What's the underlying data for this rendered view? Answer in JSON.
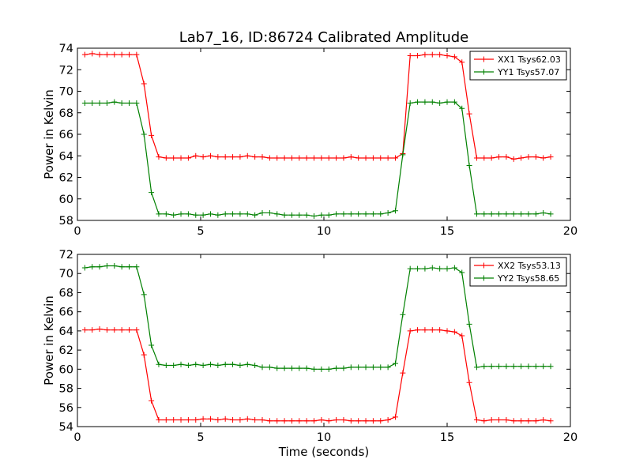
{
  "figure": {
    "title": "Lab7_16, ID:86724 Calibrated Amplitude",
    "xlabel": "Time (seconds)"
  },
  "chart_data": [
    {
      "type": "line",
      "title": "Lab7_16, ID:86724 Calibrated Amplitude",
      "xlabel": "",
      "ylabel": "Power in Kelvin",
      "xlim": [
        0,
        20
      ],
      "ylim": [
        58,
        74
      ],
      "xticks": [
        0,
        5,
        10,
        15,
        20
      ],
      "yticks": [
        58,
        60,
        62,
        64,
        66,
        68,
        70,
        72,
        74
      ],
      "grid": false,
      "legend": "top-right",
      "x": [
        0.3,
        0.6,
        0.9,
        1.2,
        1.5,
        1.8,
        2.1,
        2.4,
        2.7,
        3.0,
        3.3,
        3.6,
        3.9,
        4.2,
        4.5,
        4.8,
        5.1,
        5.4,
        5.7,
        6.0,
        6.3,
        6.6,
        6.9,
        7.2,
        7.5,
        7.8,
        8.1,
        8.4,
        8.7,
        9.0,
        9.3,
        9.6,
        9.9,
        10.2,
        10.5,
        10.8,
        11.1,
        11.4,
        11.7,
        12.0,
        12.3,
        12.6,
        12.9,
        13.2,
        13.5,
        13.8,
        14.1,
        14.4,
        14.7,
        15.0,
        15.3,
        15.6,
        15.9,
        16.2,
        16.5,
        16.8,
        17.1,
        17.4,
        17.7,
        18.0,
        18.3,
        18.6,
        18.9,
        19.2
      ],
      "series": [
        {
          "name": "XX1 Tsys62.03",
          "color": "#ff0000",
          "values": [
            73.4,
            73.5,
            73.4,
            73.4,
            73.4,
            73.4,
            73.4,
            73.4,
            70.7,
            65.9,
            63.9,
            63.8,
            63.8,
            63.8,
            63.8,
            64.0,
            63.9,
            64.0,
            63.9,
            63.9,
            63.9,
            63.9,
            64.0,
            63.9,
            63.9,
            63.8,
            63.8,
            63.8,
            63.8,
            63.8,
            63.8,
            63.8,
            63.8,
            63.8,
            63.8,
            63.8,
            63.9,
            63.8,
            63.8,
            63.8,
            63.8,
            63.8,
            63.8,
            64.2,
            73.3,
            73.3,
            73.4,
            73.4,
            73.4,
            73.3,
            73.2,
            72.7,
            67.9,
            63.8,
            63.8,
            63.8,
            63.9,
            63.9,
            63.7,
            63.8,
            63.9,
            63.9,
            63.8,
            63.9
          ]
        },
        {
          "name": "YY1 Tsys57.07",
          "color": "#008000",
          "values": [
            68.9,
            68.9,
            68.9,
            68.9,
            69.0,
            68.9,
            68.9,
            68.9,
            66.0,
            60.6,
            58.6,
            58.6,
            58.5,
            58.6,
            58.6,
            58.5,
            58.5,
            58.6,
            58.5,
            58.6,
            58.6,
            58.6,
            58.6,
            58.5,
            58.7,
            58.7,
            58.6,
            58.5,
            58.5,
            58.5,
            58.5,
            58.4,
            58.5,
            58.5,
            58.6,
            58.6,
            58.6,
            58.6,
            58.6,
            58.6,
            58.6,
            58.7,
            58.9,
            64.1,
            68.9,
            69.0,
            69.0,
            69.0,
            68.9,
            69.0,
            69.0,
            68.4,
            63.1,
            58.6,
            58.6,
            58.6,
            58.6,
            58.6,
            58.6,
            58.6,
            58.6,
            58.6,
            58.7,
            58.6
          ]
        }
      ]
    },
    {
      "type": "line",
      "title": "",
      "xlabel": "Time (seconds)",
      "ylabel": "Power in Kelvin",
      "xlim": [
        0,
        20
      ],
      "ylim": [
        54,
        72
      ],
      "xticks": [
        0,
        5,
        10,
        15,
        20
      ],
      "yticks": [
        54,
        56,
        58,
        60,
        62,
        64,
        66,
        68,
        70,
        72
      ],
      "grid": false,
      "legend": "top-right",
      "x": [
        0.3,
        0.6,
        0.9,
        1.2,
        1.5,
        1.8,
        2.1,
        2.4,
        2.7,
        3.0,
        3.3,
        3.6,
        3.9,
        4.2,
        4.5,
        4.8,
        5.1,
        5.4,
        5.7,
        6.0,
        6.3,
        6.6,
        6.9,
        7.2,
        7.5,
        7.8,
        8.1,
        8.4,
        8.7,
        9.0,
        9.3,
        9.6,
        9.9,
        10.2,
        10.5,
        10.8,
        11.1,
        11.4,
        11.7,
        12.0,
        12.3,
        12.6,
        12.9,
        13.2,
        13.5,
        13.8,
        14.1,
        14.4,
        14.7,
        15.0,
        15.3,
        15.6,
        15.9,
        16.2,
        16.5,
        16.8,
        17.1,
        17.4,
        17.7,
        18.0,
        18.3,
        18.6,
        18.9,
        19.2
      ],
      "series": [
        {
          "name": "XX2 Tsys53.13",
          "color": "#ff0000",
          "values": [
            64.1,
            64.1,
            64.2,
            64.1,
            64.1,
            64.1,
            64.1,
            64.1,
            61.5,
            56.7,
            54.7,
            54.7,
            54.7,
            54.7,
            54.7,
            54.7,
            54.8,
            54.8,
            54.7,
            54.8,
            54.7,
            54.7,
            54.8,
            54.7,
            54.7,
            54.6,
            54.6,
            54.6,
            54.6,
            54.6,
            54.6,
            54.6,
            54.7,
            54.6,
            54.7,
            54.7,
            54.6,
            54.6,
            54.6,
            54.6,
            54.6,
            54.7,
            55.0,
            59.6,
            64.0,
            64.1,
            64.1,
            64.1,
            64.1,
            64.0,
            63.9,
            63.5,
            58.6,
            54.7,
            54.6,
            54.7,
            54.7,
            54.7,
            54.6,
            54.6,
            54.6,
            54.6,
            54.7,
            54.6
          ]
        },
        {
          "name": "YY2 Tsys58.65",
          "color": "#008000",
          "values": [
            70.6,
            70.7,
            70.7,
            70.8,
            70.8,
            70.7,
            70.7,
            70.7,
            67.8,
            62.5,
            60.5,
            60.4,
            60.4,
            60.5,
            60.4,
            60.5,
            60.4,
            60.5,
            60.4,
            60.5,
            60.5,
            60.4,
            60.5,
            60.4,
            60.2,
            60.2,
            60.1,
            60.1,
            60.1,
            60.1,
            60.1,
            60.0,
            60.0,
            60.0,
            60.1,
            60.1,
            60.2,
            60.2,
            60.2,
            60.2,
            60.2,
            60.2,
            60.6,
            65.7,
            70.5,
            70.5,
            70.5,
            70.6,
            70.5,
            70.5,
            70.6,
            70.1,
            64.7,
            60.2,
            60.3,
            60.3,
            60.3,
            60.3,
            60.3,
            60.3,
            60.3,
            60.3,
            60.3,
            60.3
          ]
        }
      ]
    }
  ]
}
